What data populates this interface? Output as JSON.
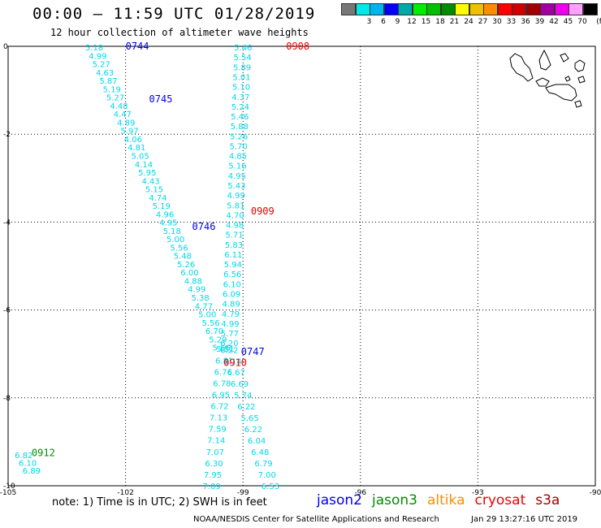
{
  "header": {
    "title": "00:00 – 11:59 UTC 01/28/2019",
    "subtitle": "12 hour collection of altimeter wave heights"
  },
  "color_scale": {
    "unit_label": "(ft)",
    "entries": [
      {
        "label": "",
        "color": "#777777"
      },
      {
        "label": "3",
        "color": "#00e8e8"
      },
      {
        "label": "6",
        "color": "#00b4f0"
      },
      {
        "label": "9",
        "color": "#0000f8"
      },
      {
        "label": "12",
        "color": "#00a8a8"
      },
      {
        "label": "15",
        "color": "#00ee00"
      },
      {
        "label": "18",
        "color": "#00c000"
      },
      {
        "label": "21",
        "color": "#008c00"
      },
      {
        "label": "24",
        "color": "#ffff00"
      },
      {
        "label": "27",
        "color": "#f0c000"
      },
      {
        "label": "30",
        "color": "#ff8c00"
      },
      {
        "label": "33",
        "color": "#ff0000"
      },
      {
        "label": "36",
        "color": "#d00000"
      },
      {
        "label": "39",
        "color": "#a00000"
      },
      {
        "label": "42",
        "color": "#a000a0"
      },
      {
        "label": "45",
        "color": "#ee00ee"
      },
      {
        "label": "70",
        "color": "#ffa0ff"
      },
      {
        "label": "",
        "color": "#000000"
      }
    ]
  },
  "map": {
    "lon_range": [
      -105,
      -90
    ],
    "lat_range": [
      -10,
      0
    ],
    "lon_ticks": [
      {
        "value": -105,
        "label": "-105"
      },
      {
        "value": -102,
        "label": "-102"
      },
      {
        "value": -99,
        "label": "-99"
      },
      {
        "value": -96,
        "label": "-96"
      },
      {
        "value": -93,
        "label": "-93"
      },
      {
        "value": -90,
        "label": "-90"
      }
    ],
    "lat_ticks": [
      {
        "value": 0,
        "label": "0"
      },
      {
        "value": -2,
        "label": "-2"
      },
      {
        "value": -4,
        "label": "-4"
      },
      {
        "value": -6,
        "label": "-6"
      },
      {
        "value": -8,
        "label": "-8"
      },
      {
        "value": -10,
        "label": "-10"
      }
    ],
    "grid": true,
    "label_color": "#00d8e8",
    "tracks": [
      {
        "satellite": "jason2",
        "start": [
          -102.8,
          -0.02
        ],
        "end": [
          -99.55,
          -6.85
        ],
        "values": [
          "5.18",
          "4.99",
          "5.27",
          "4.63",
          "5.87",
          "5.19",
          "5.27",
          "4.48",
          "4.47",
          "4.89",
          "5.97",
          "4.06",
          "4.81",
          "5.05",
          "4.14",
          "5.95",
          "4.43",
          "5.15",
          "4.74",
          "5.19",
          "4.96",
          "4.95",
          "5.18",
          "5.00",
          "5.56",
          "5.48",
          "5.26",
          "6.00",
          "4.88",
          "4.99",
          "5.38",
          "4.77",
          "5.00",
          "5.56",
          "6.70",
          "5.29",
          "5.66"
        ]
      },
      {
        "satellite": "cryosat",
        "start": [
          -99.0,
          -0.02
        ],
        "end": [
          -99.35,
          -6.75
        ],
        "values": [
          "5.46",
          "5.54",
          "5.89",
          "5.01",
          "5.10",
          "4.37",
          "5.24",
          "5.46",
          "5.88",
          "5.26",
          "5.70",
          "4.85",
          "5.16",
          "4.95",
          "5.43",
          "4.99",
          "5.81",
          "4.70",
          "4.98",
          "5.71",
          "5.83",
          "6.11",
          "5.94",
          "6.56",
          "6.10",
          "6.09",
          "4.89",
          "4.79",
          "4.99",
          "5.77",
          "6.20"
        ]
      },
      {
        "satellite": "jason2",
        "start": [
          -99.45,
          -6.88
        ],
        "end": [
          -99.8,
          -10.0
        ],
        "values": [
          "5.51",
          "6.81",
          "6.76",
          "6.78",
          "6.95",
          "6.72",
          "7.13",
          "7.59",
          "7.14",
          "7.07",
          "6.30",
          "7.95",
          "7.09"
        ]
      },
      {
        "satellite": "cryosat",
        "start": [
          -99.35,
          -6.9
        ],
        "end": [
          -98.3,
          -10.0
        ],
        "values": [
          "6.22",
          "6.14",
          "6.67",
          "6.69",
          "5.74",
          "6.22",
          "5.65",
          "6.22",
          "6.04",
          "6.48",
          "6.79",
          "7.00",
          "6.53"
        ]
      },
      {
        "satellite": "jason3",
        "start": [
          -104.6,
          -9.3
        ],
        "end": [
          -104.4,
          -9.65
        ],
        "values": [
          "6.82",
          "6.10",
          "6.89"
        ]
      }
    ],
    "time_labels": [
      {
        "text": "0744",
        "satellite": "jason2",
        "lon": -101.7,
        "lat": 0.0
      },
      {
        "text": "0745",
        "satellite": "jason2",
        "lon": -101.1,
        "lat": -1.2
      },
      {
        "text": "0746",
        "satellite": "jason2",
        "lon": -100.0,
        "lat": -4.1
      },
      {
        "text": "0747",
        "satellite": "jason2",
        "lon": -98.75,
        "lat": -6.95
      },
      {
        "text": "0908",
        "satellite": "cryosat",
        "lon": -97.6,
        "lat": 0.0
      },
      {
        "text": "0909",
        "satellite": "cryosat",
        "lon": -98.5,
        "lat": -3.75
      },
      {
        "text": "0910",
        "satellite": "cryosat",
        "lon": -99.2,
        "lat": -7.2
      },
      {
        "text": "0912",
        "satellite": "jason3",
        "lon": -104.1,
        "lat": -9.25
      }
    ]
  },
  "legend": {
    "items": [
      {
        "name": "jason2",
        "color": "#0000ee"
      },
      {
        "name": "jason3",
        "color": "#008c00"
      },
      {
        "name": "altika",
        "color": "#ff8c00"
      },
      {
        "name": "cryosat",
        "color": "#ee0000"
      },
      {
        "name": "s3a",
        "color": "#a00000"
      }
    ]
  },
  "footer": {
    "note": "note: 1) Time is in UTC; 2) SWH is in feet",
    "credit": "NOAA/NESDIS Center for Satellite Applications and Research",
    "timestamp": "Jan 29 13:27:16 UTC 2019"
  }
}
